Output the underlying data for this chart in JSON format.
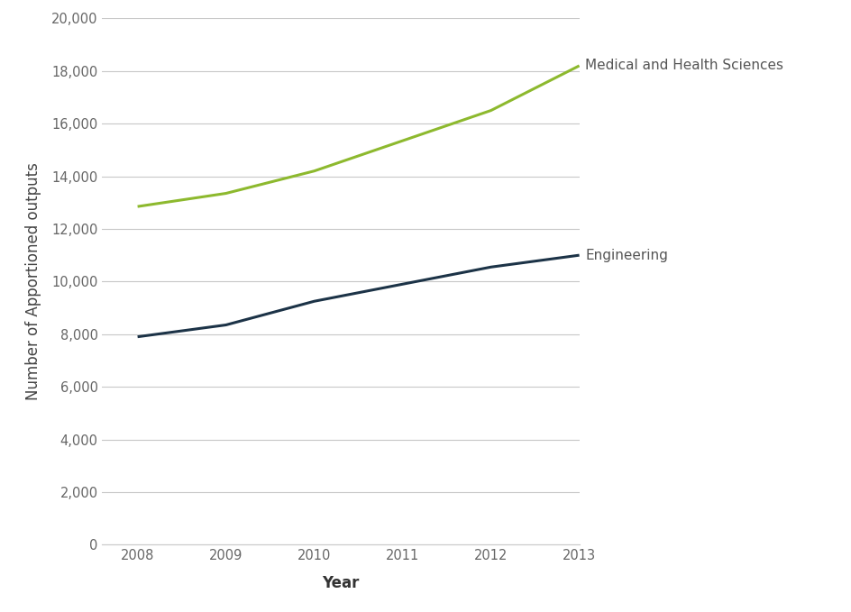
{
  "years": [
    2008,
    2009,
    2010,
    2011,
    2012,
    2013
  ],
  "medical": [
    12850,
    13350,
    14200,
    15350,
    16500,
    18200
  ],
  "engineering": [
    7900,
    8350,
    9250,
    9900,
    10550,
    11000
  ],
  "medical_label": "Medical and Health Sciences",
  "engineering_label": "Engineering",
  "xlabel": "Year",
  "ylabel": "Number of Apportioned outputs",
  "ylim": [
    0,
    20000
  ],
  "yticks": [
    0,
    2000,
    4000,
    6000,
    8000,
    10000,
    12000,
    14000,
    16000,
    18000,
    20000
  ],
  "medical_color": "#8db92e",
  "engineering_color": "#1c3347",
  "background_color": "#ffffff",
  "grid_color": "#c8c8c8",
  "line_width": 2.2,
  "label_fontsize": 11,
  "tick_fontsize": 10.5,
  "axis_label_fontsize": 12,
  "label_color": "#555555",
  "tick_color": "#666666"
}
